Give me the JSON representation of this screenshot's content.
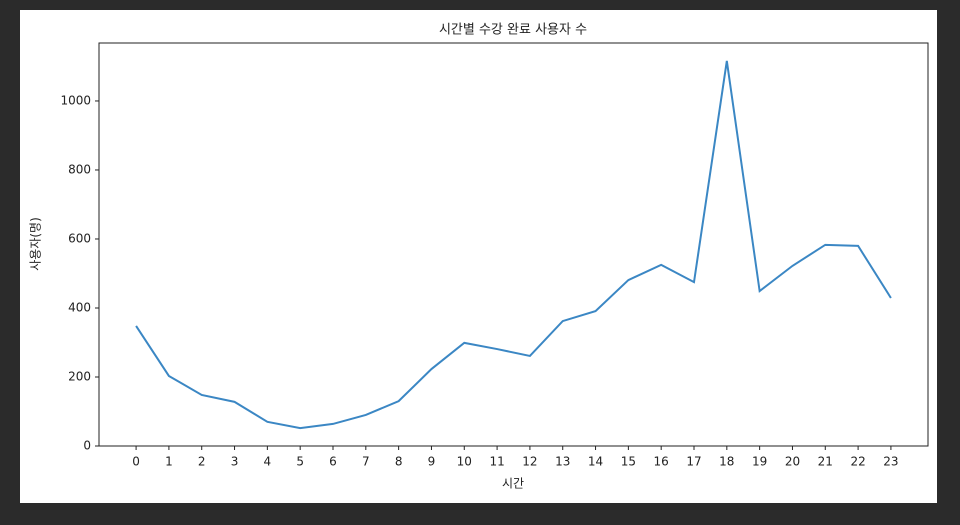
{
  "chart_data": {
    "type": "line",
    "title": "시간별 수강 완료 사용자 수",
    "x_label": "시간",
    "y_label": "사용자(명)",
    "x": [
      0,
      1,
      2,
      3,
      4,
      5,
      6,
      7,
      8,
      9,
      10,
      11,
      12,
      13,
      14,
      15,
      16,
      17,
      18,
      19,
      20,
      21,
      22,
      23
    ],
    "series": [
      {
        "color": "#3b87c4",
        "values": [
          348,
          203,
          148,
          128,
          70,
          52,
          64,
          90,
          130,
          223,
          299,
          281,
          261,
          362,
          391,
          481,
          525,
          475,
          1116,
          449,
          522,
          583,
          580,
          429
        ]
      }
    ],
    "xlim": [
      -1.13,
      24.13
    ],
    "ylim": [
      0,
      1168
    ],
    "xticks": [
      0,
      1,
      2,
      3,
      4,
      5,
      6,
      7,
      8,
      9,
      10,
      11,
      12,
      13,
      14,
      15,
      16,
      17,
      18,
      19,
      20,
      21,
      22,
      23
    ],
    "yticks": [
      0,
      200,
      400,
      600,
      800,
      1000
    ],
    "grid": false
  }
}
